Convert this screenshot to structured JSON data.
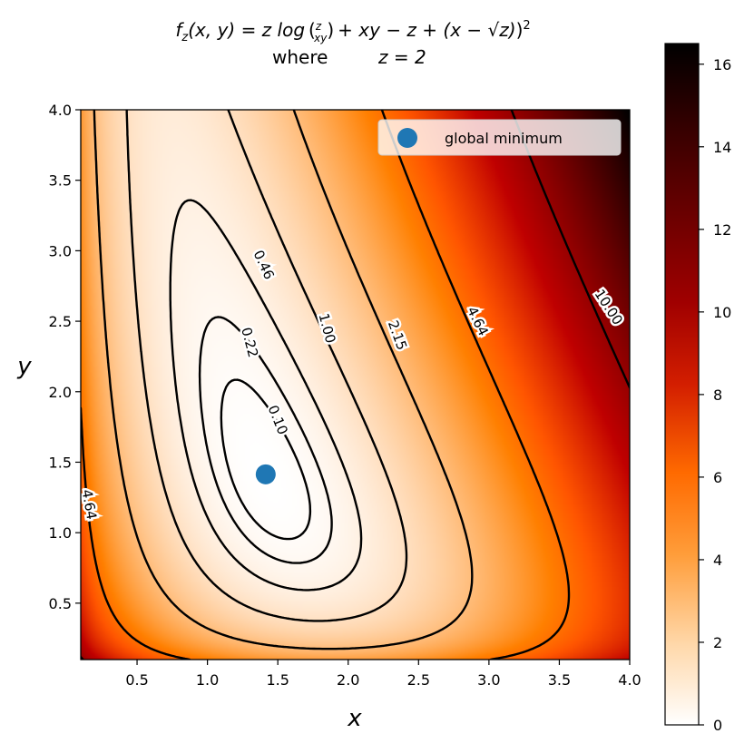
{
  "chart_data": {
    "type": "heatmap",
    "title_lines": [
      "f_z(x, y) = z log(z/(xy)) + xy − z + (x − √z)²",
      "where     z = 2"
    ],
    "title_parts": {
      "fz": "f",
      "sub": "z",
      "args": "(x, y) = z log",
      "frac_num": "z",
      "frac_den": "xy",
      "mid": "+ xy − z + (x − √z)",
      "sq": "2",
      "where": "where",
      "zeq": "z = 2"
    },
    "xlabel": "x",
    "ylabel": "y",
    "xlim": [
      0.1,
      4.0
    ],
    "ylim": [
      0.1,
      4.0
    ],
    "xticks": [
      "0.5",
      "1.0",
      "1.5",
      "2.0",
      "2.5",
      "3.0",
      "3.5",
      "4.0"
    ],
    "yticks": [
      "0.5",
      "1.0",
      "1.5",
      "2.0",
      "2.5",
      "3.0",
      "3.5",
      "4.0"
    ],
    "z": 2,
    "colormap": "gist_heat_r",
    "colorbar": {
      "range": [
        0,
        16.5
      ],
      "ticks": [
        "0",
        "2",
        "4",
        "6",
        "8",
        "10",
        "12",
        "14",
        "16"
      ]
    },
    "contour_levels": [
      0.1,
      0.22,
      0.46,
      1.0,
      2.15,
      4.64,
      10.0
    ],
    "contour_labels": [
      {
        "text": "0.10",
        "x": 1.5,
        "y": 1.8,
        "rot": 68
      },
      {
        "text": "0.22",
        "x": 1.3,
        "y": 2.35,
        "rot": 75
      },
      {
        "text": "0.46",
        "x": 1.4,
        "y": 2.9,
        "rot": 65
      },
      {
        "text": "1.00",
        "x": 1.85,
        "y": 2.45,
        "rot": 75
      },
      {
        "text": "2.15",
        "x": 2.35,
        "y": 2.4,
        "rot": 70
      },
      {
        "text": "4.64",
        "x": 2.92,
        "y": 2.5,
        "rot": 64
      },
      {
        "text": "10.00",
        "x": 3.85,
        "y": 2.6,
        "rot": 57
      },
      {
        "text": "4.64",
        "x": 0.16,
        "y": 1.2,
        "rot": 80
      }
    ],
    "global_minimum": {
      "x": 1.414,
      "y": 1.414
    },
    "legend": {
      "label": "global minimum",
      "position": "upper right"
    },
    "marker_color": "#1f77b4"
  }
}
